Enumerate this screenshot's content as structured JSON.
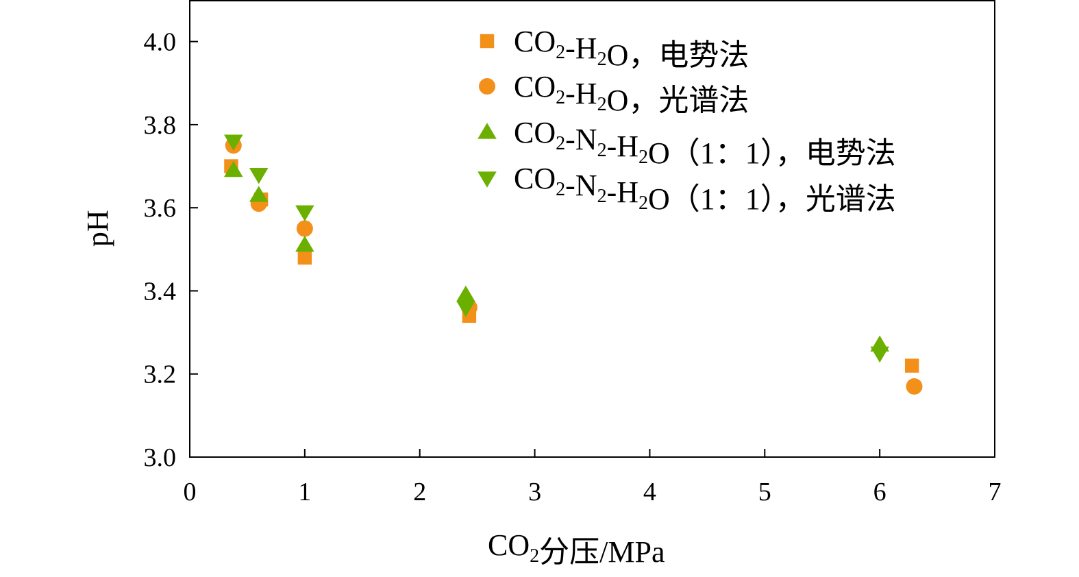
{
  "chart_data": {
    "type": "scatter",
    "xlabel": "CO₂分压/MPa",
    "ylabel": "pH",
    "xlim": [
      0,
      7
    ],
    "ylim": [
      3.0,
      4.1
    ],
    "x_ticks": [
      "0",
      "1",
      "2",
      "3",
      "4",
      "5",
      "6",
      "7"
    ],
    "y_ticks": [
      "3.0",
      "3.2",
      "3.4",
      "3.6",
      "3.8",
      "4.0"
    ],
    "grid": false,
    "legend_position": "top-right",
    "series": [
      {
        "name": "CO₂-H₂O，电势法",
        "marker": "square",
        "color": "#F39019",
        "x": [
          0.36,
          0.62,
          1.0,
          2.43,
          6.28
        ],
        "y": [
          3.7,
          3.62,
          3.48,
          3.34,
          3.22
        ]
      },
      {
        "name": "CO₂-H₂O，光谱法",
        "marker": "circle",
        "color": "#F39019",
        "x": [
          0.38,
          0.6,
          1.0,
          2.43,
          6.3
        ],
        "y": [
          3.75,
          3.61,
          3.55,
          3.36,
          3.17
        ]
      },
      {
        "name": "CO₂-N₂-H₂O（1：1），电势法",
        "marker": "triangle-up",
        "color": "#6BB000",
        "x": [
          0.38,
          0.6,
          1.0,
          2.4,
          6.0
        ],
        "y": [
          3.69,
          3.63,
          3.51,
          3.39,
          3.27
        ]
      },
      {
        "name": "CO₂-N₂-H₂O（1：1），光谱法",
        "marker": "triangle-down",
        "color": "#6BB000",
        "x": [
          0.38,
          0.6,
          1.0,
          2.4,
          6.0
        ],
        "y": [
          3.76,
          3.68,
          3.59,
          3.36,
          3.25
        ]
      }
    ]
  }
}
